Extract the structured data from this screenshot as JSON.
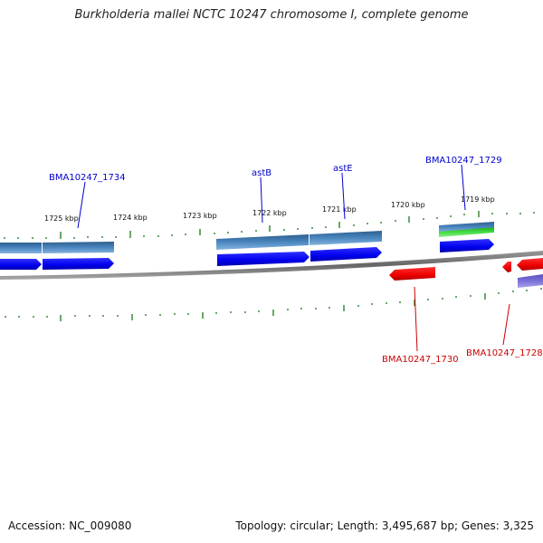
{
  "title": "Burkholderia mallei NCTC 10247 chromosome I, complete genome",
  "footer": {
    "accession": "Accession: NC_009080",
    "topology": "Topology: circular; Length: 3,495,687 bp; Genes: 3,325"
  },
  "colors": {
    "forward_cds": "#0000ee",
    "reverse_cds": "#ee0000",
    "forward_gene": "#4a86c0",
    "reverse_gene": "#7a72d8",
    "rna_green": "#33cc33",
    "backbone": "#777777",
    "ticks": "#1a7a1a",
    "label_forward": "#0000cc",
    "label_reverse": "#cc0000"
  },
  "tick_labels": [
    "1725 kbp",
    "1724 kbp",
    "1723 kbp",
    "1722 kbp",
    "1721 kbp",
    "1720 kbp",
    "1719 kbp"
  ],
  "gene_labels": {
    "bma1734": "BMA10247_1734",
    "astB": "astB",
    "astE": "astE",
    "bma1729": "BMA10247_1729",
    "bma1730": "BMA10247_1730",
    "bma1728": "BMA10247_1728"
  }
}
